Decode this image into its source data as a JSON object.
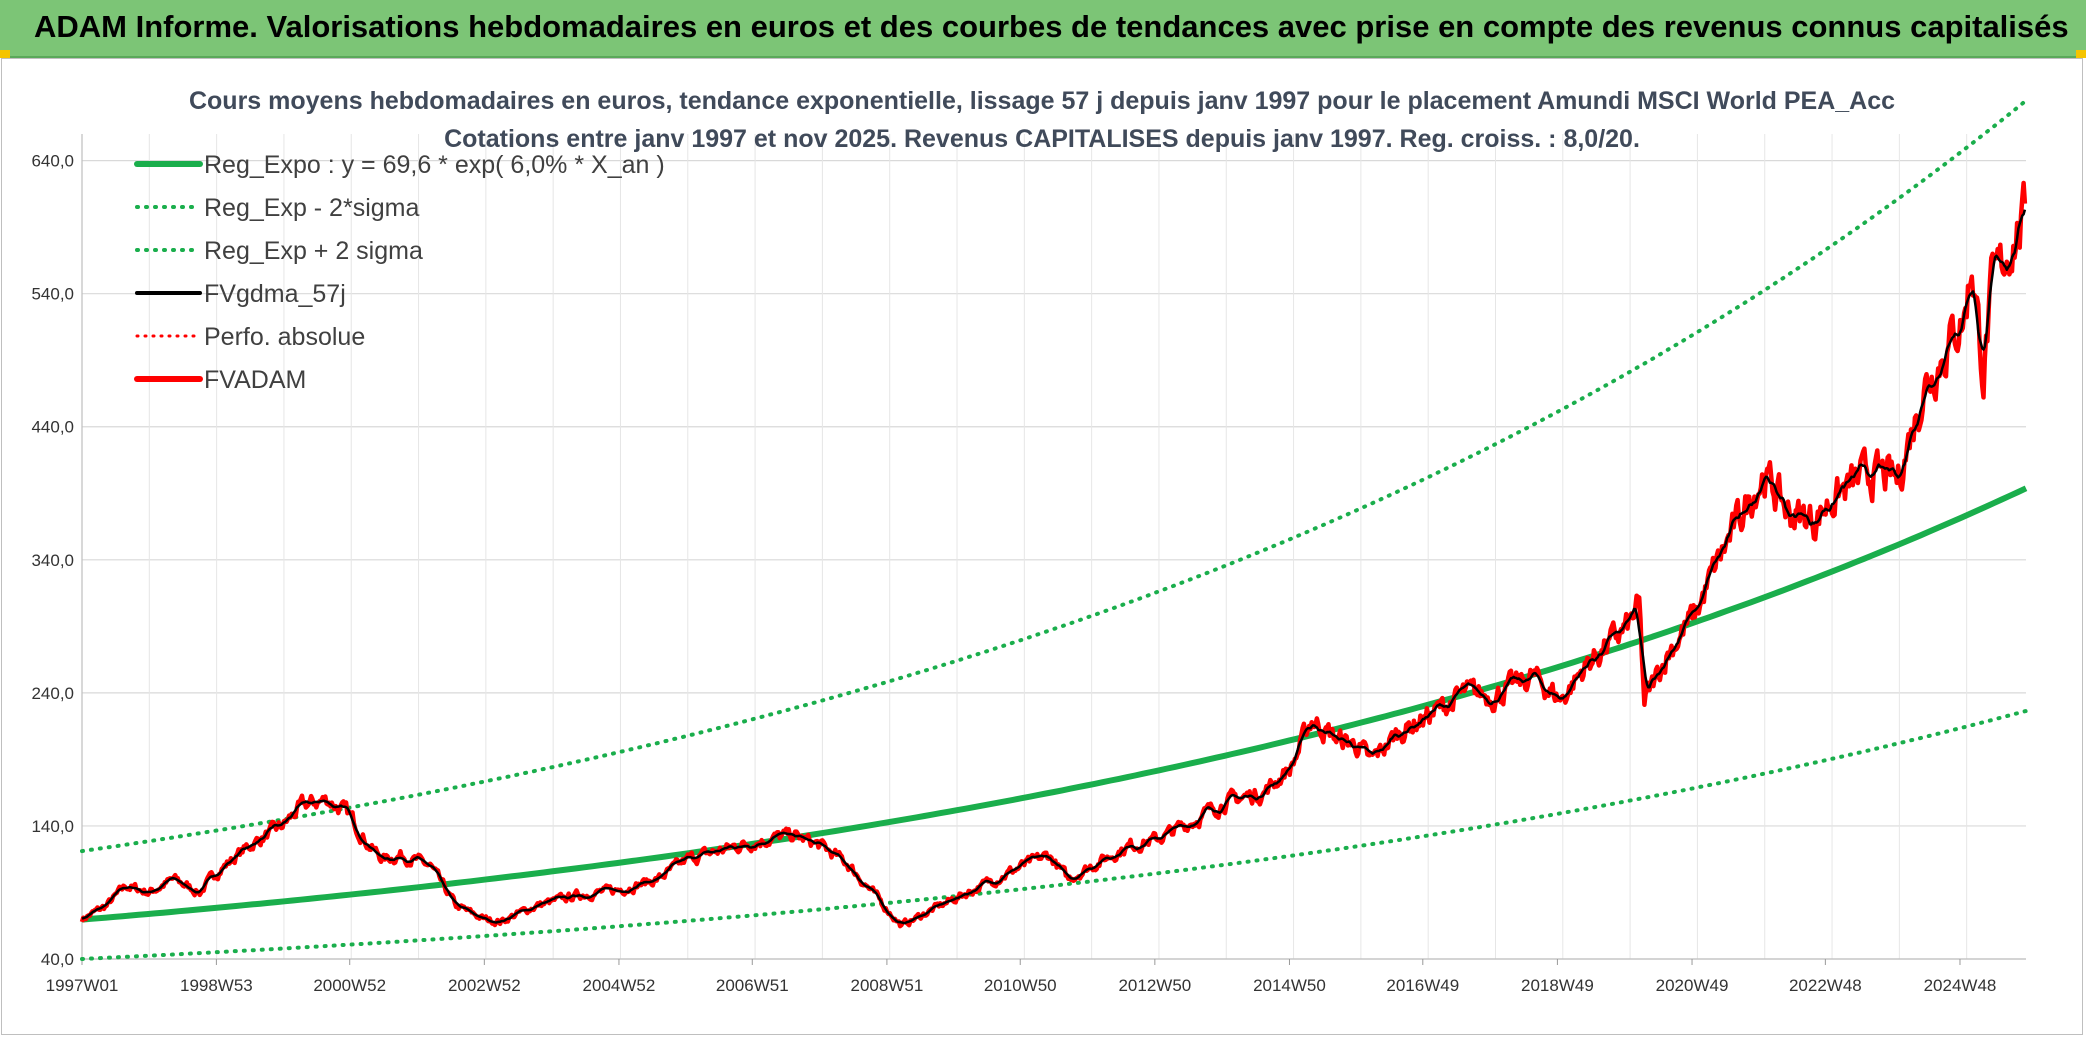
{
  "banner": {
    "title": "ADAM Informe. Valorisations hebdomadaires en euros et des courbes de tendances avec prise en compte des revenus connus capitalisés"
  },
  "colors": {
    "banner_bg": "#7cc576",
    "reg_green": "#1aae4c",
    "red": "#ff0000",
    "black": "#000000",
    "grid": "#d9d9d9"
  },
  "chart_data": {
    "type": "line",
    "title": "Cours moyens hebdomadaires en euros, tendance exponentielle, lissage 57 j depuis janv 1997 pour le placement Amundi MSCI World PEA_Acc",
    "subtitle": "Cotations entre janv 1997 et nov 2025. Revenus CAPITALISES depuis janv 1997. Reg. croiss. : 8,0/20.",
    "xlabel": "",
    "ylabel": "",
    "x_range": [
      "1997W01",
      "2025W47"
    ],
    "ylim": [
      40,
      660
    ],
    "y_ticks": [
      "40,0",
      "140,0",
      "240,0",
      "340,0",
      "440,0",
      "540,0",
      "640,0"
    ],
    "x_ticks": [
      "1997W01",
      "1998W53",
      "2000W52",
      "2002W52",
      "2004W52",
      "2006W51",
      "2008W51",
      "2010W50",
      "2012W50",
      "2014W50",
      "2016W49",
      "2018W49",
      "2020W49",
      "2022W48",
      "2024W48"
    ],
    "grid": true,
    "legend_position": "top-left",
    "series": [
      {
        "name": "Reg_Expo : y = 69,6 * exp( 6,0% *  X_an )",
        "style": "solid-green"
      },
      {
        "name": "Reg_Exp - 2*sigma",
        "style": "dotted-green"
      },
      {
        "name": "Reg_Exp + 2 sigma",
        "style": "dotted-green"
      },
      {
        "name": "FVgdma_57j",
        "style": "solid-black"
      },
      {
        "name": "Perfo. absolue",
        "style": "dotted-red"
      },
      {
        "name": "FVADAM",
        "style": "solid-red"
      }
    ],
    "regression": {
      "a": 69.6,
      "rate": 0.06,
      "lower_factor": 0.575,
      "upper_factor": 1.74
    },
    "fvadam_points": [
      [
        "1997W01",
        70
      ],
      [
        "1997W20",
        80
      ],
      [
        "1997W35",
        95
      ],
      [
        "1998W01",
        90
      ],
      [
        "1998W20",
        100
      ],
      [
        "1998W40",
        90
      ],
      [
        "1999W01",
        105
      ],
      [
        "1999W26",
        125
      ],
      [
        "1999W52",
        140
      ],
      [
        "2000W15",
        155
      ],
      [
        "2000W35",
        160
      ],
      [
        "2000W52",
        148
      ],
      [
        "2001W15",
        125
      ],
      [
        "2001W26",
        115
      ],
      [
        "2001W40",
        118
      ],
      [
        "2002W10",
        110
      ],
      [
        "2002W30",
        80
      ],
      [
        "2002W52",
        70
      ],
      [
        "2003W12",
        68
      ],
      [
        "2003W40",
        80
      ],
      [
        "2004W20",
        88
      ],
      [
        "2004W52",
        92
      ],
      [
        "2005W30",
        100
      ],
      [
        "2006W01",
        115
      ],
      [
        "2006W20",
        120
      ],
      [
        "2006W40",
        125
      ],
      [
        "2007W10",
        130
      ],
      [
        "2007W30",
        133
      ],
      [
        "2007W52",
        125
      ],
      [
        "2008W20",
        112
      ],
      [
        "2008W40",
        90
      ],
      [
        "2009W10",
        65
      ],
      [
        "2009W40",
        80
      ],
      [
        "2010W20",
        95
      ],
      [
        "2010W52",
        110
      ],
      [
        "2011W20",
        118
      ],
      [
        "2011W35",
        100
      ],
      [
        "2012W01",
        110
      ],
      [
        "2012W30",
        125
      ],
      [
        "2012W52",
        130
      ],
      [
        "2013W30",
        145
      ],
      [
        "2013W52",
        158
      ],
      [
        "2014W30",
        165
      ],
      [
        "2014W52",
        185
      ],
      [
        "2015W15",
        220
      ],
      [
        "2015W35",
        205
      ],
      [
        "2015W52",
        200
      ],
      [
        "2016W08",
        188
      ],
      [
        "2016W30",
        210
      ],
      [
        "2016W52",
        222
      ],
      [
        "2017W30",
        240
      ],
      [
        "2017W52",
        238
      ],
      [
        "2018W30",
        252
      ],
      [
        "2018W52",
        235
      ],
      [
        "2019W20",
        262
      ],
      [
        "2019W52",
        290
      ],
      [
        "2020W08",
        305
      ],
      [
        "2020W12",
        232
      ],
      [
        "2020W30",
        270
      ],
      [
        "2020W52",
        300
      ],
      [
        "2021W20",
        345
      ],
      [
        "2021W52",
        405
      ],
      [
        "2022W20",
        375
      ],
      [
        "2022W40",
        370
      ],
      [
        "2022W52",
        385
      ],
      [
        "2023W30",
        405
      ],
      [
        "2023W52",
        400
      ],
      [
        "2024W20",
        470
      ],
      [
        "2024W52",
        525
      ],
      [
        "2025W05",
        565
      ],
      [
        "2025W14",
        480
      ],
      [
        "2025W20",
        540
      ],
      [
        "2025W35",
        578
      ],
      [
        "2025W47",
        598
      ]
    ]
  }
}
